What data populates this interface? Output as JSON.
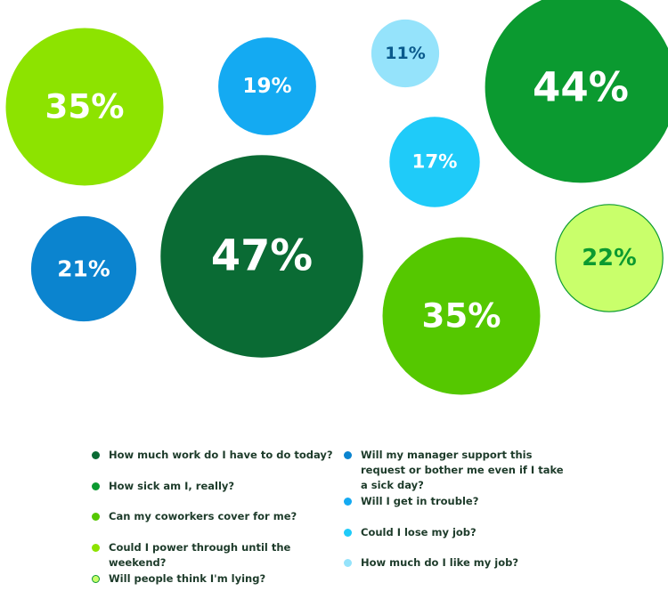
{
  "chart_data": {
    "type": "bubble",
    "categories": [
      "How much work do I have to do today?",
      "How sick am I, really?",
      "Can my coworkers cover for me?",
      "Could I power through until the weekend?",
      "Will people think I'm lying?",
      "Will my manager support this request or bother me even if I take a sick day?",
      "Will I get in trouble?",
      "Could I lose my job?",
      "How much do I like my job?"
    ],
    "values": [
      47,
      44,
      35,
      35,
      22,
      21,
      19,
      17,
      11
    ],
    "value_labels": [
      "47%",
      "44%",
      "35%",
      "35%",
      "22%",
      "21%",
      "19%",
      "17%",
      "11%"
    ],
    "colors": [
      "#0a6b34",
      "#0b9a30",
      "#55c800",
      "#8de300",
      "#c9ff6b",
      "#0b84cf",
      "#14aaf2",
      "#1fcbf9",
      "#95e3fb"
    ]
  }
}
